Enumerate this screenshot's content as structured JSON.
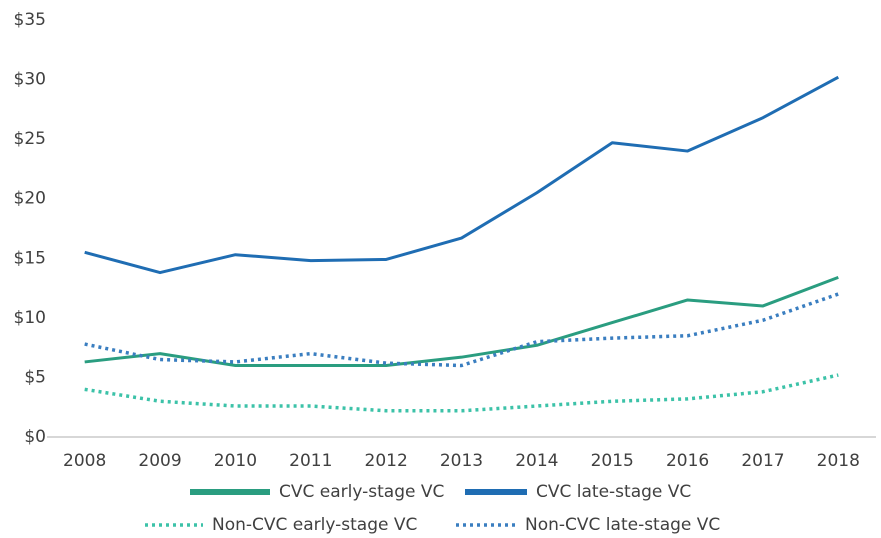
{
  "chart_data": {
    "type": "line",
    "categories": [
      "2008",
      "2009",
      "2010",
      "2011",
      "2012",
      "2013",
      "2014",
      "2015",
      "2016",
      "2017",
      "2018"
    ],
    "ylim": [
      0,
      35
    ],
    "yticks": [
      {
        "value": 0,
        "label": "$0"
      },
      {
        "value": 5,
        "label": "$5"
      },
      {
        "value": 10,
        "label": "$10"
      },
      {
        "value": 15,
        "label": "$15"
      },
      {
        "value": 20,
        "label": "$20"
      },
      {
        "value": 25,
        "label": "$25"
      },
      {
        "value": 30,
        "label": "$30"
      },
      {
        "value": 35,
        "label": "$35"
      }
    ],
    "grid": false,
    "legend": "bottom",
    "series": [
      {
        "name": "CVC early-stage VC",
        "color": "#2a9d80",
        "style": "solid",
        "values": [
          6.3,
          7.0,
          6.0,
          6.0,
          6.0,
          6.7,
          7.7,
          9.6,
          11.5,
          11.0,
          13.4
        ]
      },
      {
        "name": "CVC late-stage VC",
        "color": "#1f6db3",
        "style": "solid",
        "values": [
          15.5,
          13.8,
          15.3,
          14.8,
          14.9,
          16.7,
          20.5,
          24.7,
          24.0,
          26.8,
          30.2
        ]
      },
      {
        "name": "Non-CVC early-stage VC",
        "color": "#3cc2a8",
        "style": "dotted",
        "values": [
          4.0,
          3.0,
          2.6,
          2.6,
          2.2,
          2.2,
          2.6,
          3.0,
          3.2,
          3.8,
          5.2
        ]
      },
      {
        "name": "Non-CVC late-stage VC",
        "color": "#3a7ec0",
        "style": "dotted",
        "values": [
          7.8,
          6.5,
          6.3,
          7.0,
          6.2,
          6.0,
          8.0,
          8.3,
          8.5,
          9.8,
          12.0
        ]
      }
    ]
  }
}
